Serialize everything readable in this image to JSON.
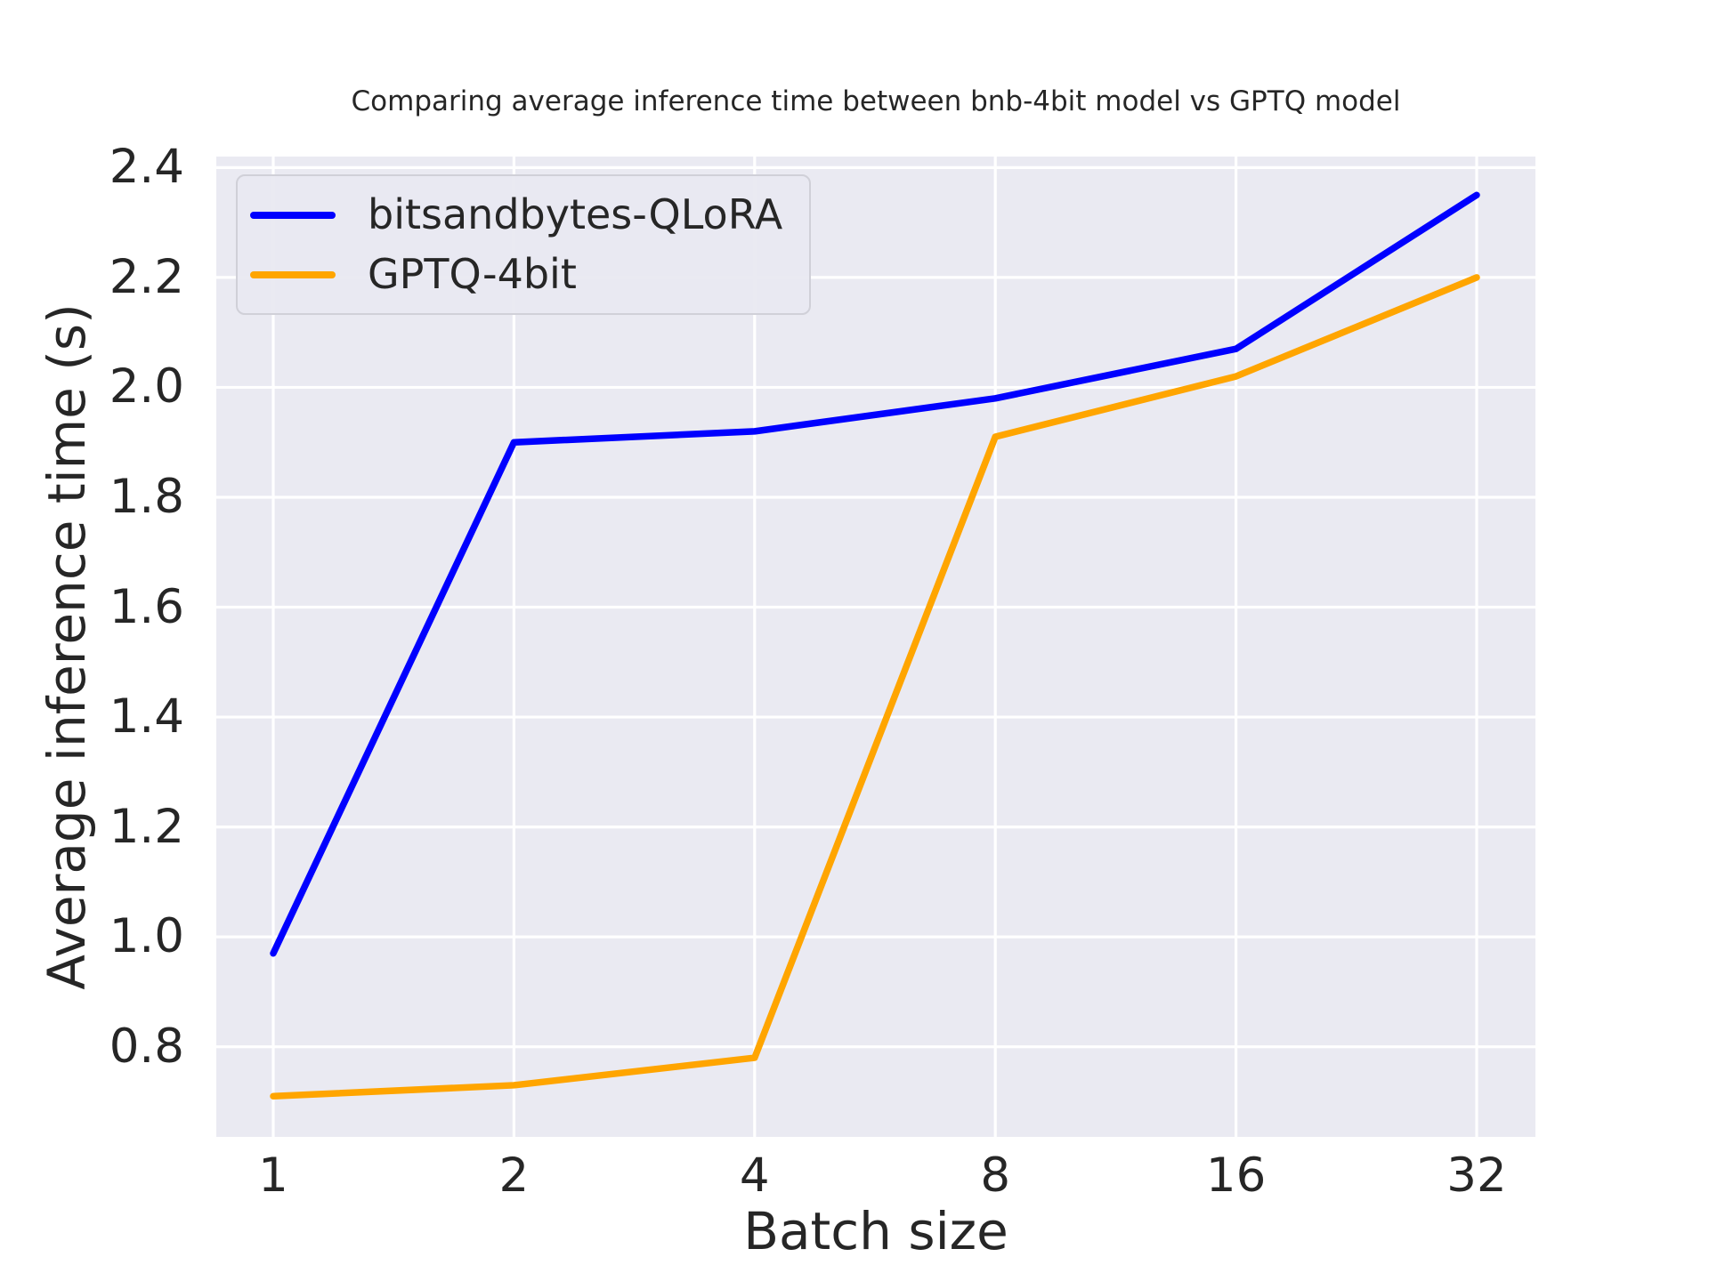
{
  "chart_data": {
    "type": "line",
    "title": "Comparing average inference time between bnb-4bit model vs GPTQ model",
    "xlabel": "Batch size",
    "ylabel": "Average inference time (s)",
    "x_scale": "log2",
    "categories": [
      1,
      2,
      4,
      8,
      16,
      32
    ],
    "x_tick_labels": [
      "1",
      "2",
      "4",
      "8",
      "16",
      "32"
    ],
    "y_ticks": [
      0.8,
      1.0,
      1.2,
      1.4,
      1.6,
      1.8,
      2.0,
      2.2,
      2.4
    ],
    "y_tick_labels": [
      "0.8",
      "1.0",
      "1.2",
      "1.4",
      "1.6",
      "1.8",
      "2.0",
      "2.2",
      "2.4"
    ],
    "ylim": [
      0.636,
      2.42
    ],
    "grid": true,
    "legend_position": "upper-left",
    "series": [
      {
        "name": "bitsandbytes-QLoRA",
        "color": "#0000ff",
        "values": [
          0.97,
          1.9,
          1.92,
          1.98,
          2.07,
          2.35
        ]
      },
      {
        "name": "GPTQ-4bit",
        "color": "#ffa500",
        "values": [
          0.71,
          0.73,
          0.78,
          1.91,
          2.02,
          2.2
        ]
      }
    ],
    "colors": {
      "figure_background": "#ffffff",
      "axes_background": "#eaeaf2",
      "grid": "#ffffff",
      "text": "#262626"
    }
  }
}
